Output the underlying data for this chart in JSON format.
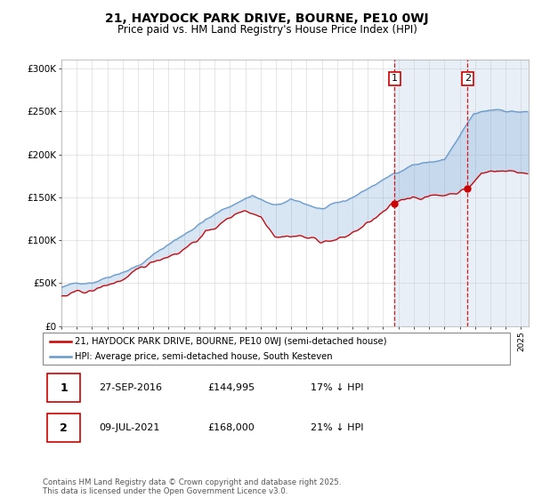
{
  "title": "21, HAYDOCK PARK DRIVE, BOURNE, PE10 0WJ",
  "subtitle": "Price paid vs. HM Land Registry's House Price Index (HPI)",
  "ylabel_ticks": [
    "£0",
    "£50K",
    "£100K",
    "£150K",
    "£200K",
    "£250K",
    "£300K"
  ],
  "ytick_values": [
    0,
    50000,
    100000,
    150000,
    200000,
    250000,
    300000
  ],
  "ylim": [
    0,
    310000
  ],
  "xlim_start": 1995.0,
  "xlim_end": 2025.5,
  "hpi_color": "#6699cc",
  "price_color": "#cc0000",
  "vline_color": "#dd0000",
  "marker1_date_x": 2016.75,
  "marker1_price": 144995,
  "marker2_date_x": 2021.52,
  "marker2_price": 168000,
  "shade_color": "#ddeeff",
  "legend_label1": "21, HAYDOCK PARK DRIVE, BOURNE, PE10 0WJ (semi-detached house)",
  "legend_label2": "HPI: Average price, semi-detached house, South Kesteven",
  "table_row1": [
    "1",
    "27-SEP-2016",
    "£144,995",
    "17% ↓ HPI"
  ],
  "table_row2": [
    "2",
    "09-JUL-2021",
    "£168,000",
    "21% ↓ HPI"
  ],
  "footer": "Contains HM Land Registry data © Crown copyright and database right 2025.\nThis data is licensed under the Open Government Licence v3.0.",
  "background_color": "#ffffff",
  "grid_color": "#cccccc"
}
